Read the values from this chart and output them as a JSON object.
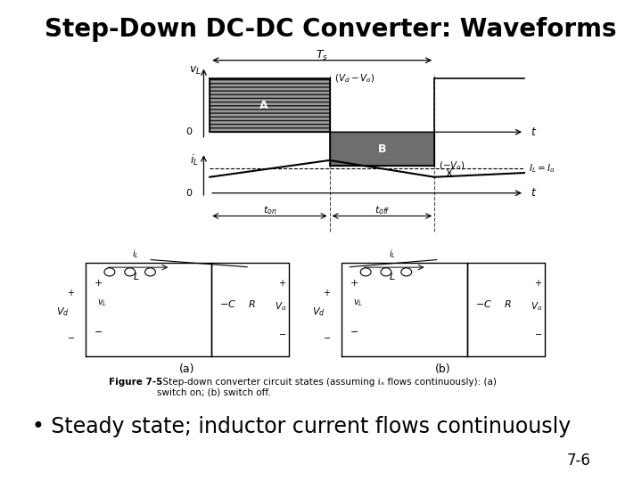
{
  "title": "Step-Down DC-DC Converter: Waveforms",
  "title_fontsize": 20,
  "bullet_text": "• Steady state; inductor current flows continuously",
  "bullet_fontsize": 17,
  "page_number": "7-6",
  "page_fontsize": 12,
  "bg_color": "#ffffff",
  "text_color": "#000000",
  "figure_caption_bold": "Figure 7-5",
  "figure_caption_normal": "  Step-down converter circuit states (assuming iₓ flows continuously): (a)\nswitch on; (b) switch off.",
  "figure_caption_fontsize": 7.5
}
